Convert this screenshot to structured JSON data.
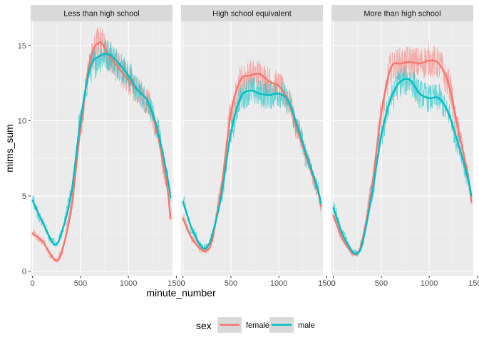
{
  "chart_data": {
    "type": "line",
    "xlabel": "minute_number",
    "ylabel": "mims_sum",
    "xlim": [
      -20,
      1460
    ],
    "ylim": [
      -0.3,
      16.6
    ],
    "x_ticks": [
      0,
      500,
      1000,
      1500
    ],
    "x_tick_labels": [
      "0",
      "500",
      "1000",
      "1500"
    ],
    "y_ticks": [
      0,
      5,
      10,
      15
    ],
    "y_tick_labels": [
      "0",
      "5",
      "10",
      "15"
    ],
    "grid": true,
    "legend": {
      "title": "sex",
      "position": "bottom",
      "entries": [
        {
          "label": "female",
          "color": "#F8766D"
        },
        {
          "label": "male",
          "color": "#00BFC4"
        }
      ]
    },
    "colors": {
      "female": "#F8766D",
      "male": "#00BFC4",
      "panel_bg": "#EBEBEB",
      "strip_bg": "#D9D9D9",
      "grid": "#FFFFFF"
    },
    "x": [
      0,
      100,
      200,
      250,
      300,
      400,
      500,
      600,
      700,
      800,
      900,
      1000,
      1100,
      1200,
      1300,
      1400,
      1440
    ],
    "panels": [
      {
        "strip": "Less than high school",
        "series": [
          {
            "name": "female",
            "values": [
              2.5,
              2.0,
              1.0,
              0.7,
              1.2,
              4.0,
              9.5,
              14.0,
              15.2,
              14.3,
              13.5,
              12.7,
              12.0,
              11.3,
              9.2,
              5.8,
              3.5
            ]
          },
          {
            "name": "male",
            "values": [
              4.7,
              3.3,
              2.0,
              1.8,
              2.5,
              5.0,
              10.0,
              13.5,
              14.3,
              14.4,
              13.8,
              13.0,
              12.0,
              11.3,
              9.5,
              6.5,
              4.9
            ]
          }
        ]
      },
      {
        "strip": "High school equivalent",
        "series": [
          {
            "name": "female",
            "values": [
              3.5,
              2.1,
              1.4,
              1.4,
              2.0,
              5.5,
              10.5,
              12.7,
              13.0,
              13.1,
              12.6,
              12.3,
              11.3,
              9.3,
              7.3,
              5.5,
              4.3
            ]
          },
          {
            "name": "male",
            "values": [
              4.6,
              2.7,
              1.6,
              1.6,
              2.3,
              5.0,
              9.2,
              11.5,
              12.0,
              11.8,
              11.7,
              11.8,
              11.3,
              9.5,
              7.5,
              5.6,
              4.5
            ]
          }
        ]
      },
      {
        "strip": "More than high school",
        "series": [
          {
            "name": "female",
            "values": [
              3.7,
              2.1,
              1.2,
              1.2,
              2.0,
              5.5,
              10.5,
              13.5,
              13.8,
              13.9,
              13.8,
              14.0,
              13.8,
              12.5,
              9.5,
              6.5,
              4.6
            ]
          },
          {
            "name": "male",
            "values": [
              4.2,
              2.4,
              1.3,
              1.2,
              1.8,
              5.0,
              9.0,
              11.5,
              12.6,
              12.7,
              11.8,
              11.5,
              11.5,
              10.5,
              8.5,
              6.3,
              5.0
            ]
          }
        ]
      }
    ]
  }
}
